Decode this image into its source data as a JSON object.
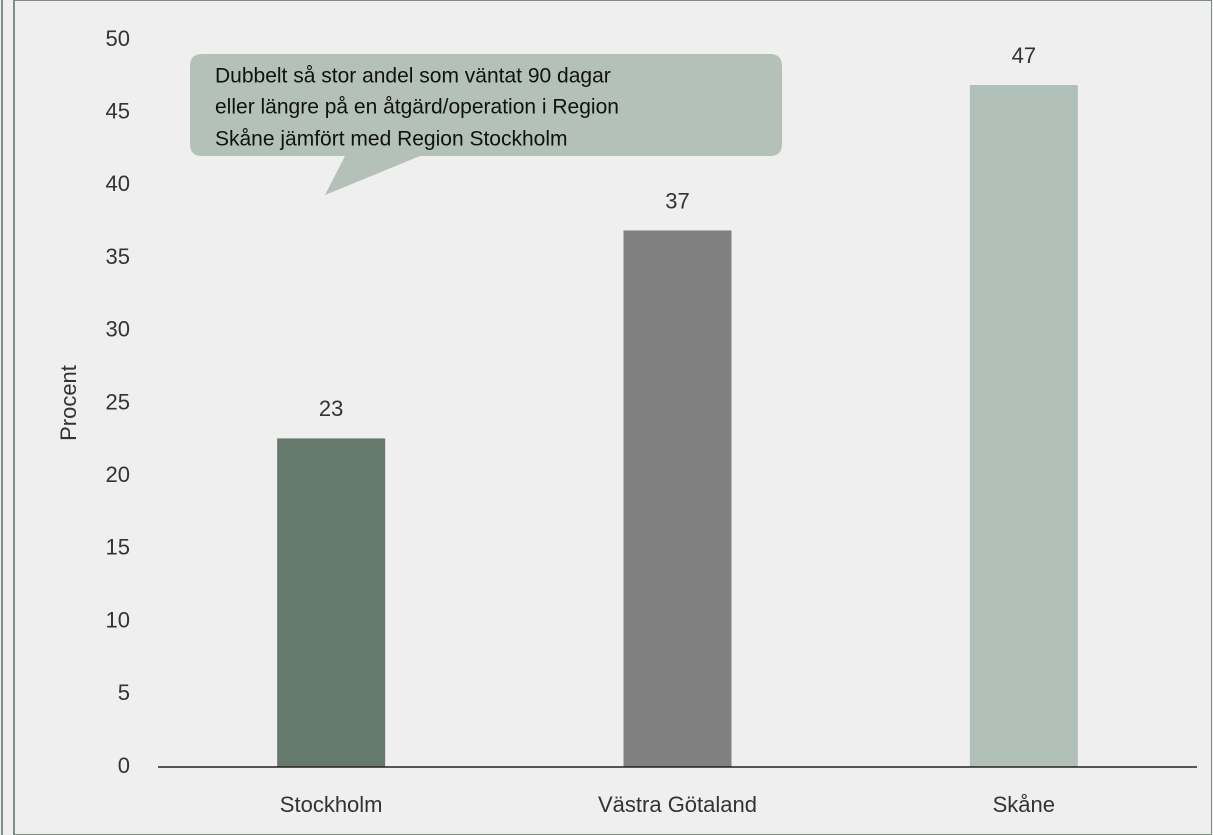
{
  "chart_data": {
    "type": "bar",
    "y_label": "Procent",
    "categories": [
      "Stockholm",
      "Västra Götaland",
      "Skåne"
    ],
    "values": [
      22.6,
      36.9,
      46.9
    ],
    "value_labels": [
      "23",
      "37",
      "47"
    ],
    "colors": [
      "#65796c",
      "#808080",
      "#b0bfb7"
    ],
    "ylim": [
      0,
      50
    ],
    "yticks": [
      0,
      5,
      10,
      15,
      20,
      25,
      30,
      35,
      40,
      45,
      50
    ],
    "annotation": [
      "Dubbelt så stor andel som väntat 90 dagar",
      "eller längre på en åtgärd/operation i Region",
      "Skåne jämfört med Region Stockholm"
    ]
  }
}
